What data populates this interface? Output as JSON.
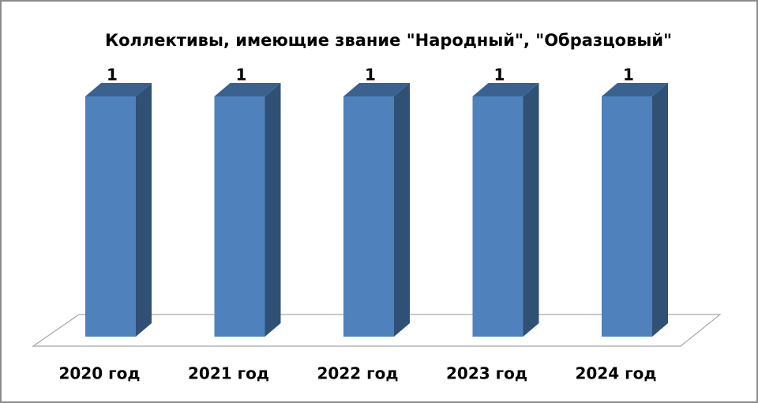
{
  "chart_data": {
    "type": "bar3d",
    "title": "Коллективы, имеющие звание \"Народный\", \"Образцовый\"",
    "categories": [
      "2020 год",
      "2021 год",
      "2022 год",
      "2023 год",
      "2024 год"
    ],
    "values": [
      1,
      1,
      1,
      1,
      1
    ],
    "color": "#4f81bd"
  }
}
